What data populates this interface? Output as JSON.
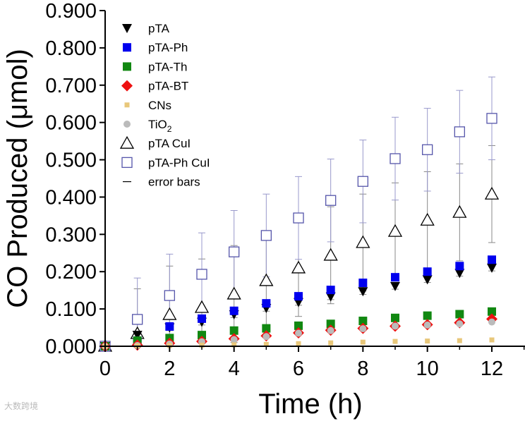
{
  "chart_data": {
    "type": "scatter",
    "title": "",
    "xlabel": "Time (h)",
    "ylabel": "CO Produced (μmol)",
    "xlim": [
      0,
      13
    ],
    "ylim": [
      0,
      0.9
    ],
    "xticks": [
      "0",
      "2",
      "4",
      "6",
      "8",
      "10",
      "12"
    ],
    "yticks": [
      "0.000",
      "0.100",
      "0.200",
      "0.300",
      "0.400",
      "0.500",
      "0.600",
      "0.700",
      "0.800",
      "0.900"
    ],
    "grid": false,
    "legend_position": "top-left",
    "x": [
      0,
      1,
      2,
      3,
      4,
      5,
      6,
      7,
      8,
      9,
      10,
      11,
      12
    ],
    "series": [
      {
        "name": "pTA",
        "marker": "triangle-down",
        "color": "#000000",
        "values": [
          0,
          0.03,
          0.05,
          0.065,
          0.085,
          0.102,
          0.118,
          0.133,
          0.147,
          0.161,
          0.179,
          0.196,
          0.21
        ],
        "error": [
          0,
          0.008,
          0.008,
          0.008,
          0.008,
          0.008,
          0.008,
          0.008,
          0.008,
          0.008,
          0.008,
          0.008,
          0.008
        ]
      },
      {
        "name": "pTA-Ph",
        "marker": "square",
        "color": "#0000ee",
        "values": [
          0,
          0.015,
          0.053,
          0.074,
          0.095,
          0.115,
          0.134,
          0.151,
          0.17,
          0.185,
          0.2,
          0.215,
          0.232
        ],
        "error": [
          0,
          0.008,
          0.008,
          0.008,
          0.008,
          0.008,
          0.008,
          0.008,
          0.008,
          0.008,
          0.008,
          0.008,
          0.008
        ]
      },
      {
        "name": "pTA-Th",
        "marker": "square",
        "color": "#118811",
        "values": [
          0,
          0.015,
          0.022,
          0.03,
          0.042,
          0.048,
          0.055,
          0.06,
          0.068,
          0.076,
          0.082,
          0.086,
          0.093
        ],
        "error": [
          0,
          0,
          0,
          0,
          0,
          0,
          0,
          0,
          0,
          0,
          0,
          0,
          0
        ]
      },
      {
        "name": "pTA-BT",
        "marker": "diamond",
        "color": "#ee1111",
        "values": [
          0,
          0.003,
          0.008,
          0.013,
          0.02,
          0.028,
          0.036,
          0.043,
          0.048,
          0.054,
          0.058,
          0.063,
          0.073
        ],
        "error": [
          0,
          0,
          0,
          0,
          0,
          0,
          0,
          0,
          0,
          0,
          0,
          0,
          0
        ]
      },
      {
        "name": "CNs",
        "marker": "small-square",
        "color": "#e8c77a",
        "values": [
          0,
          0.001,
          0.002,
          0.003,
          0.004,
          0.005,
          0.007,
          0.009,
          0.011,
          0.013,
          0.014,
          0.015,
          0.017
        ],
        "error": [
          0,
          0,
          0,
          0,
          0,
          0,
          0,
          0,
          0,
          0,
          0,
          0,
          0
        ]
      },
      {
        "name": "TiO2",
        "label_main": "TiO",
        "label_sub": "2",
        "marker": "circle",
        "color": "#bbbbbb",
        "values": [
          0,
          0.002,
          0.006,
          0.012,
          0.018,
          0.026,
          0.035,
          0.042,
          0.047,
          0.054,
          0.057,
          0.06,
          0.065
        ],
        "error": [
          0,
          0,
          0,
          0,
          0,
          0,
          0,
          0,
          0,
          0,
          0,
          0,
          0
        ]
      },
      {
        "name": "pTA CuI",
        "marker": "triangle-open",
        "color": "#000000",
        "values": [
          0,
          0.034,
          0.085,
          0.104,
          0.14,
          0.176,
          0.21,
          0.244,
          0.278,
          0.308,
          0.338,
          0.359,
          0.408
        ],
        "error": [
          0,
          0.12,
          0.13,
          0.13,
          0.13,
          0.13,
          0.13,
          0.13,
          0.13,
          0.13,
          0.13,
          0.13,
          0.13
        ]
      },
      {
        "name": "pTA-Ph CuI",
        "marker": "square-open",
        "color": "#5555aa",
        "values": [
          0,
          0.072,
          0.136,
          0.193,
          0.253,
          0.297,
          0.344,
          0.391,
          0.442,
          0.503,
          0.527,
          0.575,
          0.611
        ],
        "error": [
          0,
          0.111,
          0.111,
          0.111,
          0.111,
          0.111,
          0.111,
          0.111,
          0.111,
          0.111,
          0.111,
          0.111,
          0.111
        ]
      }
    ],
    "legend_extra": "error bars"
  },
  "watermark": "大数跨境"
}
